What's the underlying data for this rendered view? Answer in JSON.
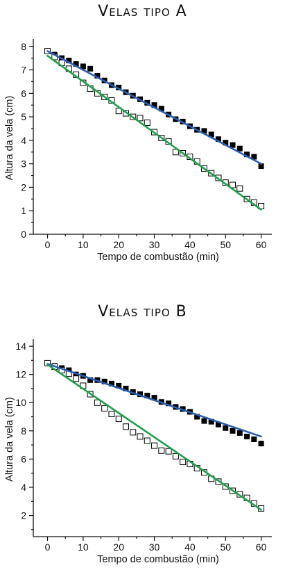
{
  "chart_data": [
    {
      "type": "scatter",
      "title": "Velas tipo A",
      "xlabel": "Tempo de combustão (min)",
      "ylabel": "Altura da vela (cm)",
      "xlim": [
        -4,
        63
      ],
      "ylim": [
        0,
        8.2
      ],
      "xticks": [
        0,
        10,
        20,
        30,
        40,
        50,
        60
      ],
      "yticks": [
        0,
        1,
        2,
        3,
        4,
        5,
        6,
        7,
        8
      ],
      "grid": false,
      "series": [
        {
          "marker": "filled-square",
          "color": "#000000",
          "x": [
            0,
            2,
            4,
            6,
            8,
            10,
            12,
            14,
            16,
            18,
            20,
            22,
            24,
            26,
            28,
            30,
            32,
            34,
            36,
            38,
            40,
            42,
            44,
            46,
            48,
            50,
            52,
            54,
            56,
            58,
            60
          ],
          "y": [
            7.8,
            7.65,
            7.5,
            7.4,
            7.25,
            7.15,
            7.05,
            6.75,
            6.55,
            6.35,
            6.25,
            6.05,
            5.9,
            5.75,
            5.6,
            5.5,
            5.35,
            5.1,
            4.9,
            4.8,
            4.6,
            4.45,
            4.4,
            4.25,
            4.05,
            3.9,
            3.8,
            3.65,
            3.4,
            3.3,
            2.9
          ]
        },
        {
          "marker": "open-square",
          "color": "#000000",
          "x": [
            0,
            2,
            4,
            6,
            8,
            10,
            12,
            14,
            16,
            18,
            20,
            22,
            24,
            26,
            28,
            30,
            32,
            34,
            36,
            38,
            40,
            42,
            44,
            46,
            48,
            50,
            52,
            54,
            56,
            58,
            60
          ],
          "y": [
            7.8,
            7.55,
            7.3,
            7.05,
            6.8,
            6.45,
            6.2,
            6.0,
            5.85,
            5.7,
            5.25,
            5.15,
            5.0,
            4.95,
            4.75,
            4.35,
            4.1,
            3.95,
            3.5,
            3.45,
            3.3,
            3.1,
            2.8,
            2.6,
            2.4,
            2.2,
            2.1,
            1.95,
            1.5,
            1.35,
            1.2
          ]
        }
      ],
      "trend_lines": [
        {
          "color": "#2a5fb0",
          "x": [
            0,
            60
          ],
          "y": [
            7.8,
            3.0
          ]
        },
        {
          "color": "#1fa04a",
          "x": [
            0,
            60
          ],
          "y": [
            7.6,
            1.05
          ]
        }
      ]
    },
    {
      "type": "scatter",
      "title": "Velas tipo B",
      "xlabel": "Tempo de combustão (min)",
      "ylabel": "Altura da vela (cm)",
      "xlim": [
        -4,
        63
      ],
      "ylim": [
        0.5,
        14.3
      ],
      "xticks": [
        0,
        10,
        20,
        30,
        40,
        50,
        60
      ],
      "yticks": [
        2,
        4,
        6,
        8,
        10,
        12,
        14
      ],
      "grid": false,
      "series": [
        {
          "marker": "filled-square",
          "color": "#000000",
          "x": [
            0,
            2,
            4,
            6,
            8,
            10,
            12,
            14,
            16,
            18,
            20,
            22,
            24,
            26,
            28,
            30,
            32,
            34,
            36,
            38,
            40,
            42,
            44,
            46,
            48,
            50,
            52,
            54,
            56,
            58,
            60
          ],
          "y": [
            12.8,
            12.6,
            12.45,
            12.3,
            12.0,
            11.9,
            11.6,
            11.6,
            11.5,
            11.35,
            11.2,
            11.0,
            10.75,
            10.6,
            10.5,
            10.35,
            10.05,
            9.95,
            9.7,
            9.55,
            9.35,
            9.0,
            8.7,
            8.65,
            8.45,
            8.2,
            8.0,
            7.85,
            7.6,
            7.4,
            7.1
          ]
        },
        {
          "marker": "open-square",
          "color": "#000000",
          "x": [
            0,
            2,
            4,
            6,
            8,
            10,
            12,
            14,
            16,
            18,
            20,
            22,
            24,
            26,
            28,
            30,
            32,
            34,
            36,
            38,
            40,
            42,
            44,
            46,
            48,
            50,
            52,
            54,
            56,
            58,
            60
          ],
          "y": [
            12.8,
            12.55,
            12.3,
            12.05,
            11.7,
            11.2,
            10.6,
            10.0,
            9.6,
            9.2,
            8.85,
            8.3,
            7.9,
            7.6,
            7.3,
            6.95,
            6.6,
            6.55,
            6.2,
            5.8,
            5.65,
            5.35,
            5.05,
            4.6,
            4.4,
            4.05,
            3.75,
            3.5,
            3.25,
            2.85,
            2.5
          ]
        }
      ],
      "trend_lines": [
        {
          "color": "#2a5fb0",
          "x": [
            0,
            60
          ],
          "y": [
            12.75,
            7.6
          ]
        },
        {
          "color": "#1fa04a",
          "x": [
            0,
            60
          ],
          "y": [
            12.7,
            2.4
          ]
        }
      ]
    }
  ]
}
